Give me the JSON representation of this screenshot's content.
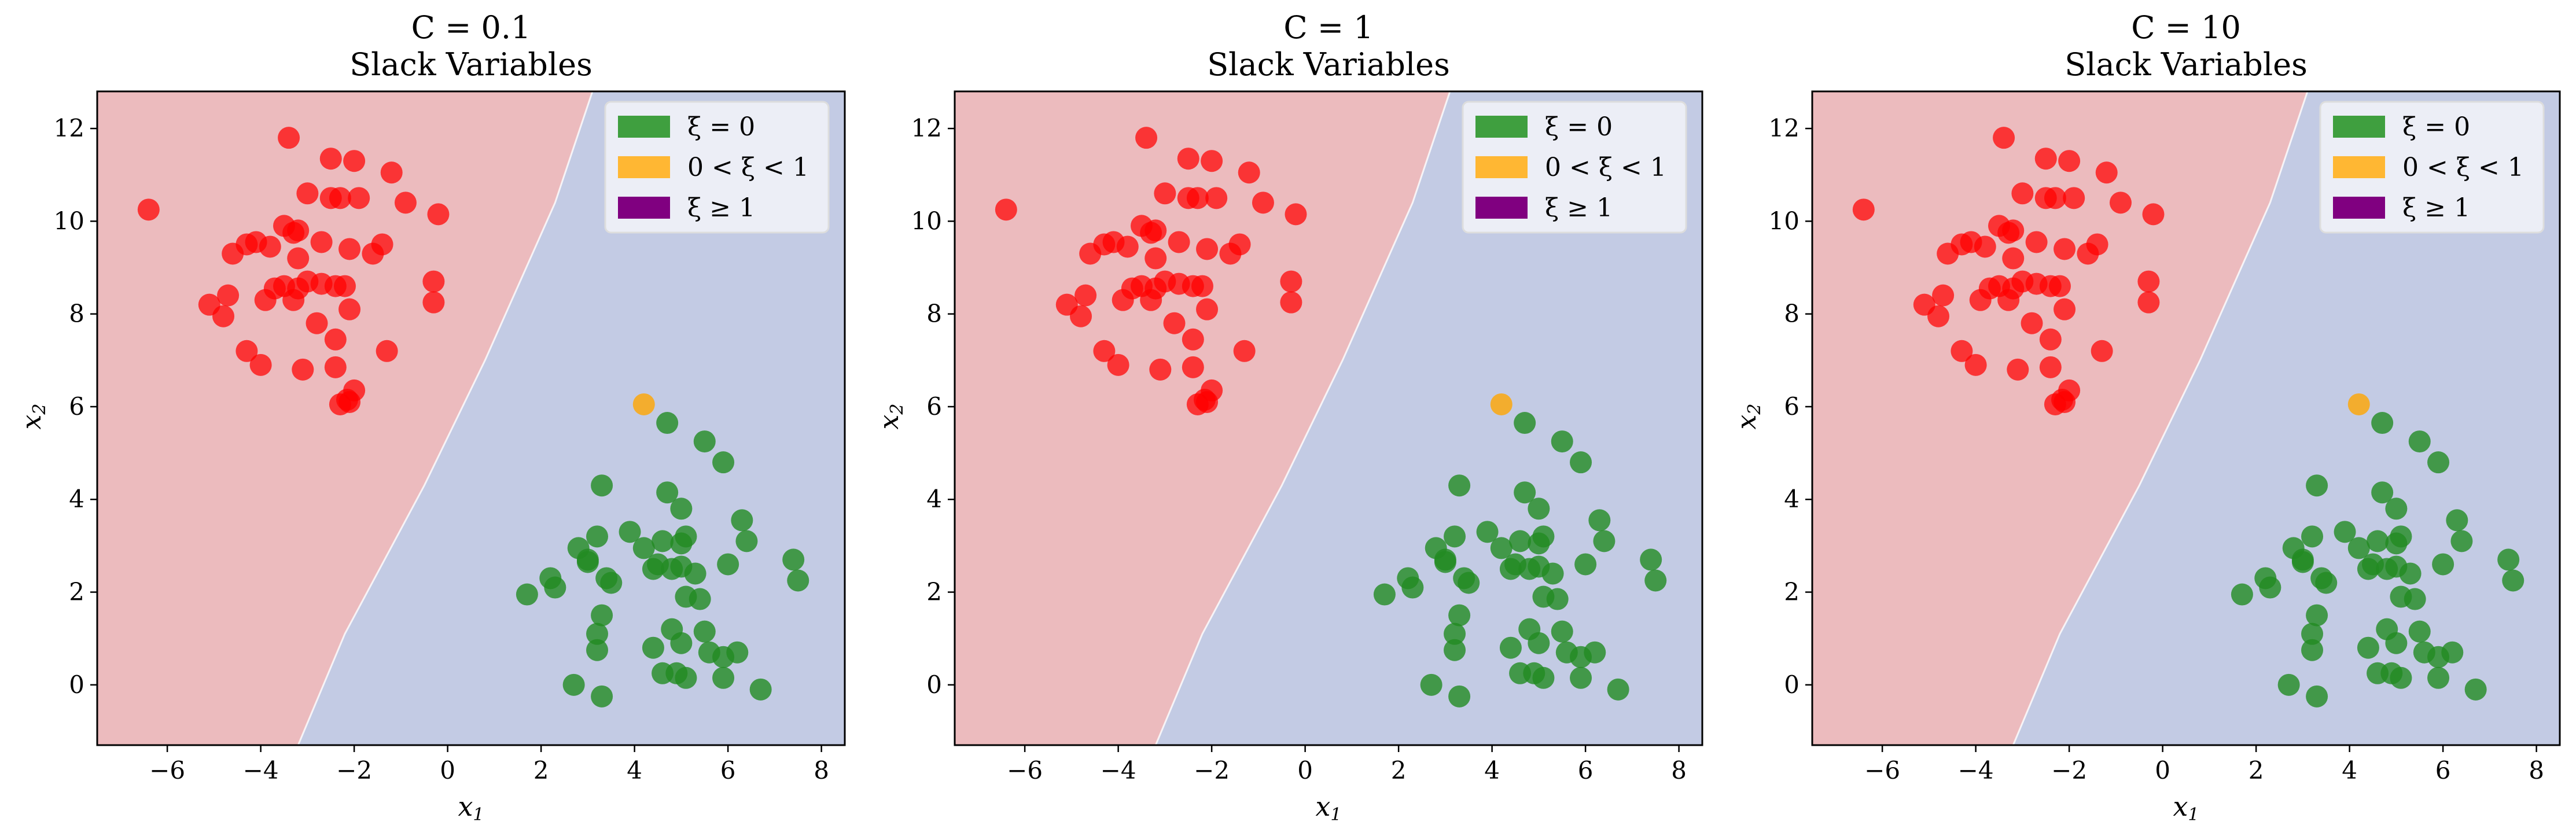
{
  "colors": {
    "region_red": "#ecbbbe",
    "region_blue": "#c3cbe4",
    "point_red": "#ff0000",
    "slack_zero": "#228b22",
    "slack_between": "#ffa500",
    "slack_over": "#800080",
    "legend_swatch_zero": "#3f9f3f",
    "legend_swatch_between": "#ffb733"
  },
  "chart_data": [
    {
      "type": "scatter",
      "title_line1": "C = 0.1",
      "title_line2": "Slack Variables",
      "xlabel": "x",
      "xlabel_sub": "1",
      "ylabel": "x",
      "ylabel_sub": "2",
      "xlim": [
        -7.5,
        8.5
      ],
      "ylim": [
        -1.3,
        12.8
      ],
      "xticks": [
        -6,
        -4,
        -2,
        0,
        2,
        4,
        6,
        8
      ],
      "yticks": [
        0,
        2,
        4,
        6,
        8,
        10,
        12
      ],
      "boundary": [
        [
          -3.2,
          -1.3
        ],
        [
          -2.2,
          1.1
        ],
        [
          -0.5,
          4.3
        ],
        [
          0.8,
          7.0
        ],
        [
          2.3,
          10.4
        ],
        [
          3.1,
          12.8
        ]
      ],
      "legend": {
        "position": "top-right",
        "entries": [
          {
            "label": "ξ = 0",
            "color_key": "legend_swatch_zero"
          },
          {
            "label": "0 < ξ < 1",
            "color_key": "legend_swatch_between"
          },
          {
            "label": "ξ ≥ 1",
            "color_key": "slack_over"
          }
        ]
      }
    },
    {
      "type": "scatter",
      "title_line1": "C = 1",
      "title_line2": "Slack Variables",
      "xlabel": "x",
      "xlabel_sub": "1",
      "ylabel": "x",
      "ylabel_sub": "2",
      "xlim": [
        -7.5,
        8.5
      ],
      "ylim": [
        -1.3,
        12.8
      ],
      "xticks": [
        -6,
        -4,
        -2,
        0,
        2,
        4,
        6,
        8
      ],
      "yticks": [
        0,
        2,
        4,
        6,
        8,
        10,
        12
      ],
      "boundary": [
        [
          -3.2,
          -1.3
        ],
        [
          -2.2,
          1.1
        ],
        [
          -0.5,
          4.3
        ],
        [
          0.8,
          7.0
        ],
        [
          2.3,
          10.4
        ],
        [
          3.1,
          12.8
        ]
      ],
      "legend": {
        "position": "top-right",
        "entries": [
          {
            "label": "ξ = 0",
            "color_key": "legend_swatch_zero"
          },
          {
            "label": "0 < ξ < 1",
            "color_key": "legend_swatch_between"
          },
          {
            "label": "ξ ≥ 1",
            "color_key": "slack_over"
          }
        ]
      }
    },
    {
      "type": "scatter",
      "title_line1": "C = 10",
      "title_line2": "Slack Variables",
      "xlabel": "x",
      "xlabel_sub": "1",
      "ylabel": "x",
      "ylabel_sub": "2",
      "xlim": [
        -7.5,
        8.5
      ],
      "ylim": [
        -1.3,
        12.8
      ],
      "xticks": [
        -6,
        -4,
        -2,
        0,
        2,
        4,
        6,
        8
      ],
      "yticks": [
        0,
        2,
        4,
        6,
        8,
        10,
        12
      ],
      "boundary": [
        [
          -3.2,
          -1.3
        ],
        [
          -2.2,
          1.1
        ],
        [
          -0.5,
          4.3
        ],
        [
          0.8,
          7.0
        ],
        [
          2.3,
          10.4
        ],
        [
          3.1,
          12.8
        ]
      ],
      "legend": {
        "position": "top-right",
        "entries": [
          {
            "label": "ξ = 0",
            "color_key": "legend_swatch_zero"
          },
          {
            "label": "0 < ξ < 1",
            "color_key": "legend_swatch_between"
          },
          {
            "label": "ξ ≥ 1",
            "color_key": "slack_over"
          }
        ]
      }
    }
  ],
  "points": {
    "red_class": [
      [
        -6.4,
        10.25
      ],
      [
        -3.4,
        11.8
      ],
      [
        -2.5,
        11.35
      ],
      [
        -2.0,
        11.3
      ],
      [
        -1.2,
        11.05
      ],
      [
        -3.0,
        10.6
      ],
      [
        -2.5,
        10.5
      ],
      [
        -2.3,
        10.5
      ],
      [
        -1.9,
        10.5
      ],
      [
        -0.9,
        10.4
      ],
      [
        -0.2,
        10.15
      ],
      [
        -3.5,
        9.9
      ],
      [
        -3.2,
        9.8
      ],
      [
        -3.3,
        9.75
      ],
      [
        -4.3,
        9.5
      ],
      [
        -4.1,
        9.55
      ],
      [
        -4.6,
        9.3
      ],
      [
        -2.7,
        9.55
      ],
      [
        -1.4,
        9.5
      ],
      [
        -1.6,
        9.3
      ],
      [
        -3.8,
        9.45
      ],
      [
        -3.2,
        9.2
      ],
      [
        -2.1,
        9.4
      ],
      [
        -0.3,
        8.7
      ],
      [
        -0.3,
        8.25
      ],
      [
        -3.0,
        8.7
      ],
      [
        -2.7,
        8.65
      ],
      [
        -2.4,
        8.6
      ],
      [
        -2.2,
        8.6
      ],
      [
        -3.2,
        8.55
      ],
      [
        -3.7,
        8.55
      ],
      [
        -3.5,
        8.6
      ],
      [
        -3.3,
        8.3
      ],
      [
        -3.9,
        8.3
      ],
      [
        -4.7,
        8.4
      ],
      [
        -5.1,
        8.2
      ],
      [
        -4.8,
        7.95
      ],
      [
        -2.8,
        7.8
      ],
      [
        -2.1,
        8.1
      ],
      [
        -2.4,
        7.45
      ],
      [
        -4.3,
        7.2
      ],
      [
        -4.0,
        6.9
      ],
      [
        -3.1,
        6.8
      ],
      [
        -2.4,
        6.85
      ],
      [
        -1.3,
        7.2
      ],
      [
        -2.0,
        6.35
      ],
      [
        -2.15,
        6.15
      ],
      [
        -2.3,
        6.05
      ],
      [
        -2.1,
        6.1
      ]
    ],
    "green_class": [
      [
        4.7,
        5.65
      ],
      [
        5.5,
        5.25
      ],
      [
        5.9,
        4.8
      ],
      [
        3.3,
        4.3
      ],
      [
        4.7,
        4.15
      ],
      [
        5.0,
        3.8
      ],
      [
        6.3,
        3.55
      ],
      [
        3.9,
        3.3
      ],
      [
        4.6,
        3.1
      ],
      [
        5.1,
        3.2
      ],
      [
        5.0,
        3.05
      ],
      [
        6.4,
        3.1
      ],
      [
        3.2,
        3.2
      ],
      [
        2.8,
        2.95
      ],
      [
        3.0,
        2.7
      ],
      [
        3.0,
        2.65
      ],
      [
        4.2,
        2.95
      ],
      [
        5.3,
        2.4
      ],
      [
        4.4,
        2.5
      ],
      [
        4.5,
        2.6
      ],
      [
        4.8,
        2.5
      ],
      [
        5.0,
        2.55
      ],
      [
        6.0,
        2.6
      ],
      [
        7.4,
        2.7
      ],
      [
        7.5,
        2.25
      ],
      [
        2.2,
        2.3
      ],
      [
        2.3,
        2.1
      ],
      [
        3.4,
        2.3
      ],
      [
        3.5,
        2.2
      ],
      [
        1.7,
        1.95
      ],
      [
        5.1,
        1.9
      ],
      [
        5.4,
        1.85
      ],
      [
        3.3,
        1.5
      ],
      [
        4.8,
        1.2
      ],
      [
        3.2,
        1.1
      ],
      [
        5.5,
        1.15
      ],
      [
        4.4,
        0.8
      ],
      [
        5.0,
        0.9
      ],
      [
        3.2,
        0.75
      ],
      [
        5.6,
        0.7
      ],
      [
        6.2,
        0.7
      ],
      [
        5.9,
        0.6
      ],
      [
        4.6,
        0.25
      ],
      [
        4.9,
        0.25
      ],
      [
        5.1,
        0.15
      ],
      [
        5.9,
        0.15
      ],
      [
        2.7,
        0.0
      ],
      [
        3.3,
        -0.25
      ],
      [
        6.7,
        -0.1
      ]
    ],
    "margin_violators": [
      [
        4.2,
        6.05
      ]
    ]
  }
}
